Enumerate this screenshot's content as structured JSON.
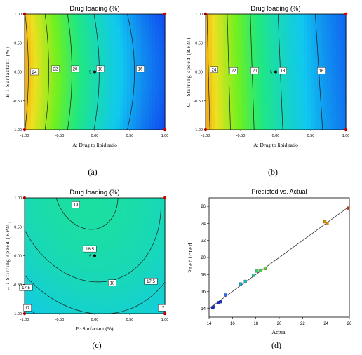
{
  "figure": {
    "panel_labels": [
      "(a)",
      "(b)",
      "(c)",
      "(d)"
    ]
  },
  "colors": {
    "contour_line": "#1a1a1a",
    "design_point": "#d00000",
    "center_point": "#000000",
    "pred_line": "#333333"
  },
  "chart_data": [
    {
      "id": "a",
      "type": "heatmap",
      "title": "Drug loading (%)",
      "xlabel": "A: Drug to lipid ratio",
      "ylabel": "B : Surfactant (%)",
      "xticks": [
        "-1.00",
        "-0.50",
        "0.00",
        "0.50",
        "1.00"
      ],
      "yticks": [
        "1.00",
        "0.50",
        "0.00",
        "-0.50",
        "-1.00"
      ],
      "xlim": [
        -1,
        1
      ],
      "ylim": [
        -1,
        1
      ],
      "color_range": [
        14,
        26
      ],
      "contour_labels": [
        {
          "text": "24",
          "x": -0.86,
          "y": 0.0
        },
        {
          "text": "22",
          "x": -0.56,
          "y": 0.05
        },
        {
          "text": "20",
          "x": -0.28,
          "y": 0.05
        },
        {
          "text": "18",
          "x": 0.08,
          "y": 0.05
        },
        {
          "text": "16",
          "x": 0.65,
          "y": 0.05
        }
      ],
      "center_point_label": "5"
    },
    {
      "id": "b",
      "type": "heatmap",
      "title": "Drug loading (%)",
      "xlabel": "A: Drug to lipid ratio",
      "ylabel": "C : Stirring speed (RPM)",
      "xticks": [
        "-1.00",
        "-0.50",
        "0.00",
        "0.50",
        "1.00"
      ],
      "yticks": [
        "1.00",
        "0.50",
        "0.00",
        "-0.50",
        "-1.00"
      ],
      "xlim": [
        -1,
        1
      ],
      "ylim": [
        -1,
        1
      ],
      "color_range": [
        14,
        26
      ],
      "contour_labels": [
        {
          "text": "24",
          "x": -0.88,
          "y": 0.04
        },
        {
          "text": "22",
          "x": -0.6,
          "y": 0.02
        },
        {
          "text": "20",
          "x": -0.3,
          "y": 0.02
        },
        {
          "text": "18",
          "x": 0.1,
          "y": 0.02
        },
        {
          "text": "16",
          "x": 0.65,
          "y": 0.02
        }
      ],
      "center_point_label": "5"
    },
    {
      "id": "c",
      "type": "heatmap",
      "title": "Drug loading (%)",
      "xlabel": "B: Surfactant (%)",
      "ylabel": "C : Stirring speed (RPM)",
      "xticks": [
        "-1.00",
        "-0.50",
        "0.00",
        "0.50",
        "1.00"
      ],
      "yticks": [
        "1.00",
        "0.50",
        "0.00",
        "-0.50",
        "-1.00"
      ],
      "xlim": [
        -1,
        1
      ],
      "ylim": [
        -1,
        1
      ],
      "color_range": [
        14,
        26
      ],
      "contour_labels": [
        {
          "text": "19",
          "x": -0.27,
          "y": 0.88
        },
        {
          "text": "18.5",
          "x": -0.07,
          "y": 0.12
        },
        {
          "text": "18",
          "x": 0.25,
          "y": -0.47
        },
        {
          "text": "17.5",
          "x": -0.98,
          "y": -0.55
        },
        {
          "text": "17.5",
          "x": 0.8,
          "y": -0.44
        },
        {
          "text": "17",
          "x": -0.96,
          "y": -0.9
        },
        {
          "text": "17",
          "x": 0.96,
          "y": -0.9
        }
      ],
      "center_point_label": "5"
    },
    {
      "id": "d",
      "type": "scatter",
      "title": "Predicted vs. Actual",
      "xlabel": "Actual",
      "ylabel": "Predicted",
      "xlim": [
        14,
        26
      ],
      "ylim": [
        13,
        27
      ],
      "xticks": [
        "14",
        "16",
        "18",
        "20",
        "22",
        "24",
        "26"
      ],
      "yticks": [
        "14",
        "16",
        "18",
        "20",
        "22",
        "24",
        "26"
      ],
      "points": [
        {
          "x": 14.3,
          "y": 14.1,
          "color": "#2233cc"
        },
        {
          "x": 14.4,
          "y": 14.2,
          "color": "#2233cc"
        },
        {
          "x": 14.8,
          "y": 14.7,
          "color": "#2233cc"
        },
        {
          "x": 15.0,
          "y": 14.8,
          "color": "#2233cc"
        },
        {
          "x": 15.4,
          "y": 15.6,
          "color": "#3366ee"
        },
        {
          "x": 16.7,
          "y": 16.9,
          "color": "#22aacc"
        },
        {
          "x": 17.1,
          "y": 17.2,
          "color": "#22bbbb"
        },
        {
          "x": 17.8,
          "y": 17.9,
          "color": "#22cc99"
        },
        {
          "x": 18.1,
          "y": 18.4,
          "color": "#33cc66"
        },
        {
          "x": 18.4,
          "y": 18.5,
          "color": "#44cc44"
        },
        {
          "x": 18.8,
          "y": 18.7,
          "color": "#66cc33"
        },
        {
          "x": 23.9,
          "y": 24.2,
          "color": "#cc9900"
        },
        {
          "x": 24.1,
          "y": 24.0,
          "color": "#dd8800"
        },
        {
          "x": 25.9,
          "y": 25.8,
          "color": "#cc3300"
        }
      ],
      "line": {
        "from": [
          14,
          14
        ],
        "to": [
          26,
          26
        ]
      }
    }
  ]
}
